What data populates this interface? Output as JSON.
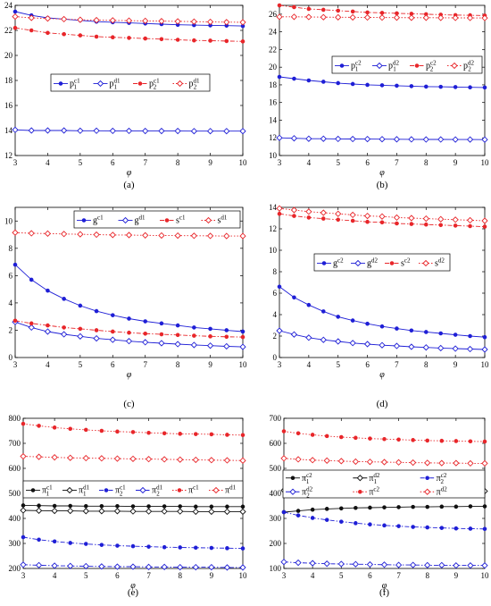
{
  "colors": {
    "blue": "#1f1fd6",
    "red": "#e8262a",
    "black": "#111111"
  },
  "chart_data": [
    {
      "type": "line",
      "panel_label": "(a)",
      "xlabel": "φ",
      "ylabel": "",
      "xlim": [
        3,
        10
      ],
      "ylim": [
        12,
        24
      ],
      "xticks": [
        3,
        4,
        5,
        6,
        7,
        8,
        9,
        10
      ],
      "yticks": [
        12,
        14,
        16,
        18,
        20,
        22,
        24
      ],
      "legend_position": "middle-center",
      "x": [
        3,
        3.5,
        4,
        4.5,
        5,
        5.5,
        6,
        6.5,
        7,
        7.5,
        8,
        8.5,
        9,
        9.5,
        10
      ],
      "series": [
        {
          "base": "p",
          "sub": "1",
          "sup": "c1",
          "color": "blue",
          "dash": "solid",
          "marker": "dot",
          "values": [
            23.5,
            23.2,
            23.0,
            22.9,
            22.8,
            22.7,
            22.65,
            22.6,
            22.55,
            22.5,
            22.45,
            22.42,
            22.4,
            22.38,
            22.35
          ]
        },
        {
          "base": "p",
          "sub": "1",
          "sup": "d1",
          "color": "blue",
          "dash": "solid",
          "marker": "diamond",
          "values": [
            14.05,
            14.0,
            14.0,
            14.0,
            13.98,
            13.98,
            13.97,
            13.97,
            13.96,
            13.96,
            13.96,
            13.95,
            13.95,
            13.95,
            13.95
          ]
        },
        {
          "base": "p",
          "sub": "2",
          "sup": "c1",
          "color": "red",
          "dash": "dashdot",
          "marker": "dot",
          "values": [
            22.2,
            22.0,
            21.8,
            21.7,
            21.6,
            21.5,
            21.45,
            21.4,
            21.35,
            21.3,
            21.25,
            21.2,
            21.18,
            21.15,
            21.12
          ]
        },
        {
          "base": "p",
          "sub": "2",
          "sup": "d1",
          "color": "red",
          "dash": "dotted",
          "marker": "diamond",
          "values": [
            23.1,
            23.0,
            22.95,
            22.9,
            22.85,
            22.82,
            22.8,
            22.78,
            22.76,
            22.74,
            22.72,
            22.7,
            22.68,
            22.66,
            22.65
          ]
        }
      ]
    },
    {
      "type": "line",
      "panel_label": "(b)",
      "xlabel": "φ",
      "ylabel": "",
      "xlim": [
        3,
        10
      ],
      "ylim": [
        10,
        27
      ],
      "xticks": [
        3,
        4,
        5,
        6,
        7,
        8,
        9,
        10
      ],
      "yticks": [
        10,
        12,
        14,
        16,
        18,
        20,
        22,
        24,
        26
      ],
      "legend_position": "middle-center",
      "x": [
        3,
        3.5,
        4,
        4.5,
        5,
        5.5,
        6,
        6.5,
        7,
        7.5,
        8,
        8.5,
        9,
        9.5,
        10
      ],
      "series": [
        {
          "base": "p",
          "sub": "1",
          "sup": "c2",
          "color": "blue",
          "dash": "solid",
          "marker": "dot",
          "values": [
            18.9,
            18.7,
            18.5,
            18.35,
            18.2,
            18.1,
            18.0,
            17.95,
            17.9,
            17.85,
            17.8,
            17.78,
            17.75,
            17.72,
            17.7
          ]
        },
        {
          "base": "p",
          "sub": "1",
          "sup": "d2",
          "color": "blue",
          "dash": "solid",
          "marker": "diamond",
          "values": [
            12.0,
            11.95,
            11.9,
            11.9,
            11.88,
            11.87,
            11.86,
            11.85,
            11.84,
            11.83,
            11.82,
            11.82,
            11.81,
            11.81,
            11.8
          ]
        },
        {
          "base": "p",
          "sub": "2",
          "sup": "c2",
          "color": "red",
          "dash": "dashdot",
          "marker": "dot",
          "values": [
            27.0,
            26.8,
            26.6,
            26.5,
            26.4,
            26.3,
            26.2,
            26.15,
            26.1,
            26.05,
            26.0,
            25.95,
            25.9,
            25.88,
            25.85
          ]
        },
        {
          "base": "p",
          "sub": "2",
          "sup": "d2",
          "color": "red",
          "dash": "dotted",
          "marker": "diamond",
          "values": [
            25.7,
            25.7,
            25.68,
            25.66,
            25.65,
            25.64,
            25.63,
            25.62,
            25.61,
            25.6,
            25.6,
            25.59,
            25.58,
            25.58,
            25.57
          ]
        }
      ]
    },
    {
      "type": "line",
      "panel_label": "(c)",
      "xlabel": "φ",
      "ylabel": "",
      "xlim": [
        3,
        10
      ],
      "ylim": [
        0,
        11
      ],
      "xticks": [
        3,
        4,
        5,
        6,
        7,
        8,
        9,
        10
      ],
      "yticks": [
        0,
        2,
        4,
        6,
        8,
        10
      ],
      "legend_position": "top",
      "x": [
        3,
        3.5,
        4,
        4.5,
        5,
        5.5,
        6,
        6.5,
        7,
        7.5,
        8,
        8.5,
        9,
        9.5,
        10
      ],
      "series": [
        {
          "base": "g",
          "sub": "",
          "sup": "c1",
          "color": "blue",
          "dash": "solid",
          "marker": "dot",
          "values": [
            6.8,
            5.7,
            4.9,
            4.3,
            3.8,
            3.4,
            3.1,
            2.85,
            2.65,
            2.5,
            2.35,
            2.2,
            2.1,
            2.0,
            1.9
          ]
        },
        {
          "base": "g",
          "sub": "",
          "sup": "d1",
          "color": "blue",
          "dash": "solid",
          "marker": "diamond",
          "values": [
            2.6,
            2.2,
            1.9,
            1.7,
            1.55,
            1.4,
            1.3,
            1.2,
            1.12,
            1.05,
            0.98,
            0.92,
            0.87,
            0.82,
            0.78
          ]
        },
        {
          "base": "s",
          "sub": "",
          "sup": "c1",
          "color": "red",
          "dash": "dashdot",
          "marker": "dot",
          "values": [
            2.7,
            2.5,
            2.35,
            2.2,
            2.1,
            2.0,
            1.9,
            1.82,
            1.75,
            1.7,
            1.65,
            1.6,
            1.55,
            1.52,
            1.5
          ]
        },
        {
          "base": "s",
          "sub": "",
          "sup": "d1",
          "color": "red",
          "dash": "dotted",
          "marker": "diamond",
          "values": [
            9.15,
            9.1,
            9.08,
            9.05,
            9.03,
            9.0,
            8.98,
            8.97,
            8.95,
            8.94,
            8.93,
            8.92,
            8.91,
            8.9,
            8.9
          ]
        }
      ]
    },
    {
      "type": "line",
      "panel_label": "(d)",
      "xlabel": "φ",
      "ylabel": "",
      "xlim": [
        3,
        10
      ],
      "ylim": [
        0,
        14
      ],
      "xticks": [
        3,
        4,
        5,
        6,
        7,
        8,
        9,
        10
      ],
      "yticks": [
        0,
        2,
        4,
        6,
        8,
        10,
        12,
        14
      ],
      "legend_position": "middle-center",
      "x": [
        3,
        3.5,
        4,
        4.5,
        5,
        5.5,
        6,
        6.5,
        7,
        7.5,
        8,
        8.5,
        9,
        9.5,
        10
      ],
      "series": [
        {
          "base": "g",
          "sub": "",
          "sup": "c2",
          "color": "blue",
          "dash": "solid",
          "marker": "dot",
          "values": [
            6.6,
            5.6,
            4.9,
            4.3,
            3.8,
            3.45,
            3.15,
            2.9,
            2.7,
            2.52,
            2.38,
            2.25,
            2.12,
            2.0,
            1.9
          ]
        },
        {
          "base": "g",
          "sub": "",
          "sup": "d2",
          "color": "blue",
          "dash": "solid",
          "marker": "diamond",
          "values": [
            2.5,
            2.15,
            1.85,
            1.65,
            1.5,
            1.35,
            1.25,
            1.15,
            1.08,
            1.0,
            0.94,
            0.88,
            0.83,
            0.79,
            0.75
          ]
        },
        {
          "base": "s",
          "sub": "",
          "sup": "c2",
          "color": "red",
          "dash": "dashdot",
          "marker": "dot",
          "values": [
            13.4,
            13.2,
            13.05,
            12.95,
            12.85,
            12.75,
            12.65,
            12.6,
            12.5,
            12.45,
            12.4,
            12.35,
            12.3,
            12.25,
            12.2
          ]
        },
        {
          "base": "s",
          "sub": "",
          "sup": "d2",
          "color": "red",
          "dash": "dotted",
          "marker": "diamond",
          "values": [
            13.9,
            13.75,
            13.6,
            13.5,
            13.4,
            13.3,
            13.2,
            13.15,
            13.05,
            13.0,
            12.95,
            12.9,
            12.85,
            12.8,
            12.75
          ]
        }
      ]
    },
    {
      "type": "line",
      "panel_label": "(e)",
      "xlabel": "φ",
      "ylabel": "",
      "xlim": [
        3,
        10
      ],
      "ylim": [
        200,
        800
      ],
      "xticks": [
        3,
        4,
        5,
        6,
        7,
        8,
        9,
        10
      ],
      "yticks": [
        200,
        300,
        400,
        500,
        600,
        700,
        800
      ],
      "legend_position": "middle",
      "x": [
        3,
        3.5,
        4,
        4.5,
        5,
        5.5,
        6,
        6.5,
        7,
        7.5,
        8,
        8.5,
        9,
        9.5,
        10
      ],
      "series": [
        {
          "base": "π",
          "sub": "1",
          "sup": "c1",
          "color": "black",
          "dash": "solid",
          "marker": "dot",
          "values": [
            452,
            451,
            450,
            450,
            449,
            449,
            449,
            448,
            448,
            448,
            448,
            447,
            447,
            447,
            447
          ]
        },
        {
          "base": "π",
          "sub": "1",
          "sup": "d1",
          "color": "black",
          "dash": "solid",
          "marker": "diamond",
          "values": [
            432,
            431,
            430,
            430,
            429,
            429,
            429,
            428,
            428,
            428,
            428,
            427,
            427,
            427,
            427
          ]
        },
        {
          "base": "π",
          "sub": "2",
          "sup": "c1",
          "color": "blue",
          "dash": "dashdot",
          "marker": "dot",
          "values": [
            325,
            315,
            308,
            302,
            298,
            294,
            291,
            289,
            287,
            285,
            284,
            283,
            282,
            281,
            280
          ]
        },
        {
          "base": "π",
          "sub": "2",
          "sup": "d1",
          "color": "blue",
          "dash": "dashdot",
          "marker": "diamond",
          "values": [
            215,
            213,
            211,
            210,
            209,
            208,
            207,
            207,
            206,
            206,
            205,
            205,
            205,
            204,
            204
          ]
        },
        {
          "base": "π",
          "sub": "",
          "sup": "c1",
          "color": "red",
          "dash": "dotted",
          "marker": "dot",
          "values": [
            778,
            770,
            763,
            758,
            754,
            750,
            747,
            745,
            742,
            740,
            738,
            737,
            736,
            734,
            733
          ]
        },
        {
          "base": "π",
          "sub": "",
          "sup": "d1",
          "color": "red",
          "dash": "dotted",
          "marker": "diamond",
          "values": [
            648,
            646,
            644,
            642,
            641,
            640,
            639,
            638,
            637,
            636,
            635,
            634,
            633,
            632,
            631
          ]
        }
      ]
    },
    {
      "type": "line",
      "panel_label": "(f)",
      "xlabel": "φ",
      "ylabel": "",
      "xlim": [
        3,
        10
      ],
      "ylim": [
        100,
        700
      ],
      "xticks": [
        3,
        4,
        5,
        6,
        7,
        8,
        9,
        10
      ],
      "yticks": [
        100,
        200,
        300,
        400,
        500,
        600,
        700
      ],
      "legend_position": "middle",
      "x": [
        3,
        3.5,
        4,
        4.5,
        5,
        5.5,
        6,
        6.5,
        7,
        7.5,
        8,
        8.5,
        9,
        9.5,
        10
      ],
      "series": [
        {
          "base": "π",
          "sub": "1",
          "sup": "c2",
          "color": "black",
          "dash": "solid",
          "marker": "dot",
          "values": [
            325,
            330,
            335,
            338,
            340,
            342,
            343,
            344,
            345,
            346,
            346,
            347,
            347,
            348,
            348
          ]
        },
        {
          "base": "π",
          "sub": "1",
          "sup": "d2",
          "color": "black",
          "dash": "solid",
          "marker": "diamond",
          "values": [
            412,
            412,
            411,
            411,
            411,
            410,
            410,
            410,
            410,
            410,
            409,
            409,
            409,
            409,
            409
          ]
        },
        {
          "base": "π",
          "sub": "2",
          "sup": "c2",
          "color": "blue",
          "dash": "dashdot",
          "marker": "dot",
          "values": [
            325,
            312,
            302,
            294,
            287,
            281,
            276,
            272,
            269,
            266,
            264,
            262,
            260,
            259,
            258
          ]
        },
        {
          "base": "π",
          "sub": "2",
          "sup": "d2",
          "color": "blue",
          "dash": "dashdot",
          "marker": "diamond",
          "values": [
            126,
            123,
            121,
            119,
            118,
            117,
            116,
            115,
            114,
            114,
            113,
            113,
            112,
            112,
            112
          ]
        },
        {
          "base": "π",
          "sub": "",
          "sup": "c2",
          "color": "red",
          "dash": "dotted",
          "marker": "dot",
          "values": [
            648,
            640,
            634,
            629,
            625,
            622,
            619,
            617,
            615,
            613,
            611,
            610,
            609,
            608,
            607
          ]
        },
        {
          "base": "π",
          "sub": "",
          "sup": "d2",
          "color": "red",
          "dash": "dotted",
          "marker": "diamond",
          "values": [
            540,
            536,
            533,
            531,
            529,
            527,
            526,
            525,
            524,
            523,
            522,
            521,
            521,
            520,
            520
          ]
        }
      ]
    }
  ]
}
